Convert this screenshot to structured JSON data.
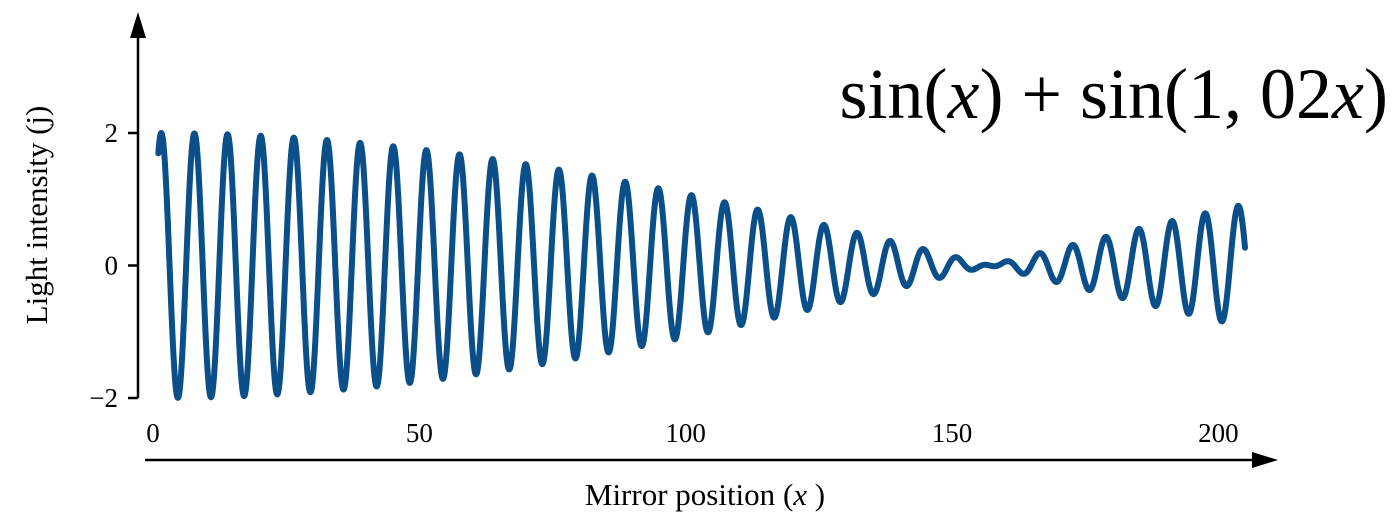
{
  "chart_data": {
    "type": "line",
    "title": "",
    "xlabel": "Mirror position",
    "xlabel_var": "x",
    "ylabel": "Light intensity (j)",
    "xlim": [
      0,
      205
    ],
    "ylim": [
      -2,
      2
    ],
    "x_ticks": [
      0,
      50,
      100,
      150,
      200
    ],
    "x_tick_labels": [
      "0",
      "50",
      "100",
      "150",
      "200"
    ],
    "y_ticks": [
      -2,
      0,
      2
    ],
    "y_tick_labels": [
      "−2",
      "0",
      "2"
    ],
    "grid": false,
    "legend": "none",
    "series_color": "#0b4f8a",
    "function": {
      "terms": [
        {
          "coefficient": 1,
          "frequency": 1.0
        },
        {
          "coefficient": 1,
          "frequency": 1.02
        }
      ],
      "x_start": 1,
      "x_end": 205
    },
    "annotation": {
      "parts": [
        {
          "text": "sin(",
          "italic": false
        },
        {
          "text": "x",
          "italic": true
        },
        {
          "text": ") + sin(1, 02",
          "italic": false
        },
        {
          "text": "x",
          "italic": true
        },
        {
          "text": ")",
          "italic": false
        }
      ]
    }
  }
}
